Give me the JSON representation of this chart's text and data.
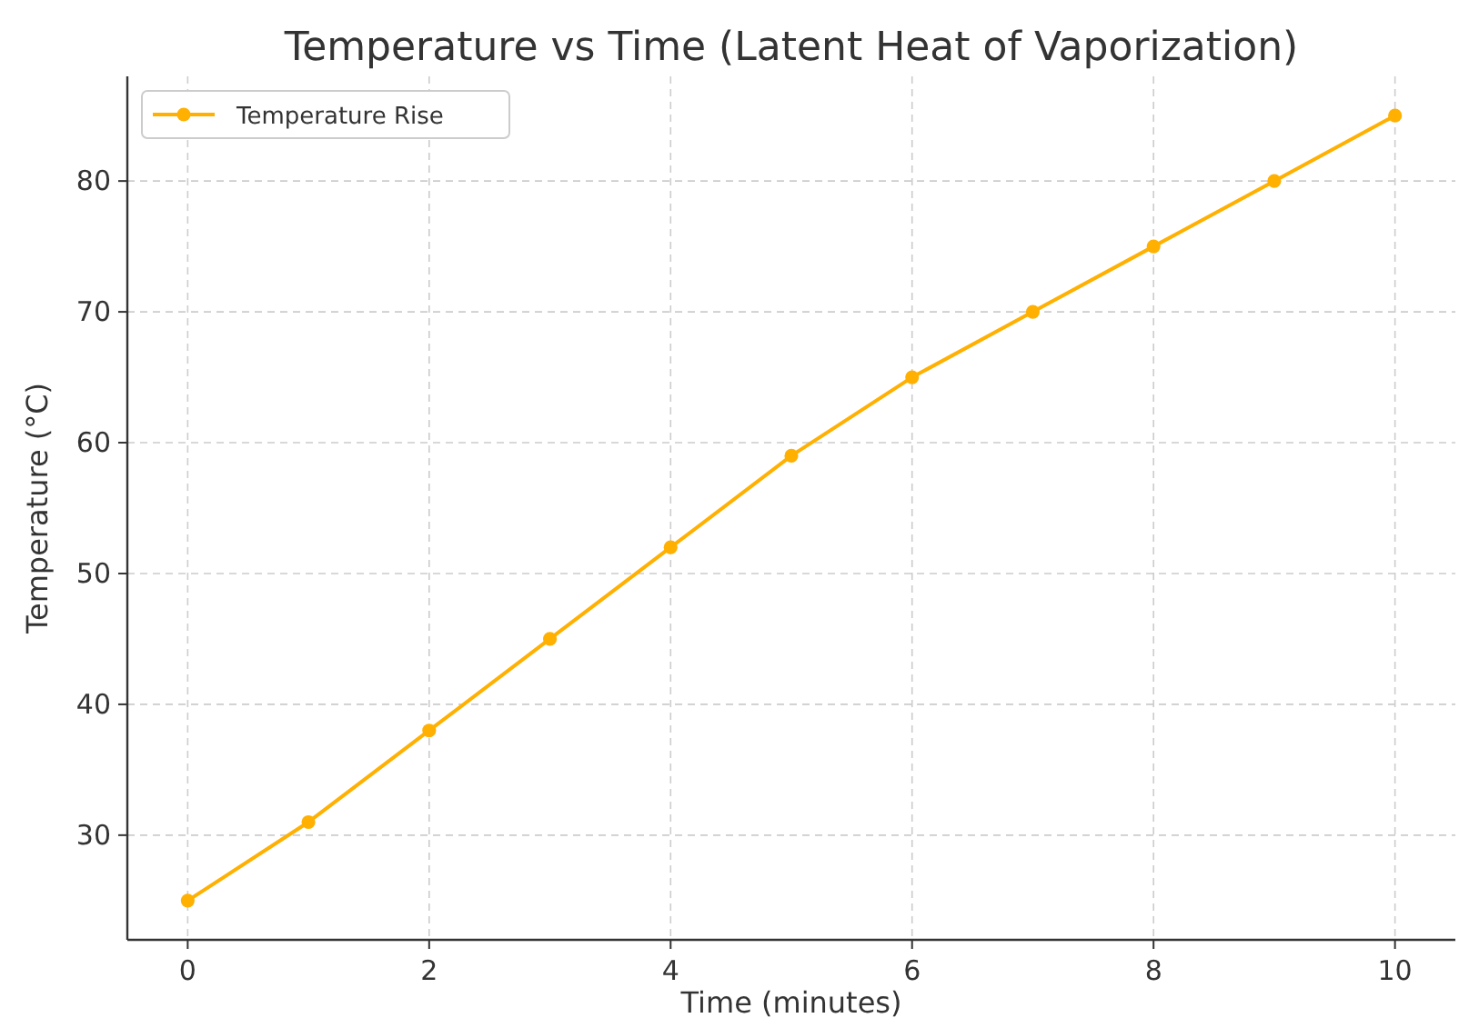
{
  "chart_data": {
    "type": "line",
    "title": "Temperature vs Time (Latent Heat of Vaporization)",
    "xlabel": "Time (minutes)",
    "ylabel": "Temperature (°C)",
    "x": [
      0,
      1,
      2,
      3,
      4,
      5,
      6,
      7,
      8,
      9,
      10
    ],
    "series": [
      {
        "name": "Temperature Rise",
        "color": "#ffb000",
        "values": [
          25,
          31,
          38,
          45,
          52,
          59,
          65,
          70,
          75,
          80,
          85
        ]
      }
    ],
    "xlim": [
      -0.5,
      10.5
    ],
    "xticks": [
      0,
      2,
      4,
      6,
      8,
      10
    ],
    "ylim": [
      22,
      88
    ],
    "yticks": [
      30,
      40,
      50,
      60,
      70,
      80
    ],
    "grid": true,
    "legend": "top left",
    "marker": "circle",
    "line_style": "solid"
  }
}
